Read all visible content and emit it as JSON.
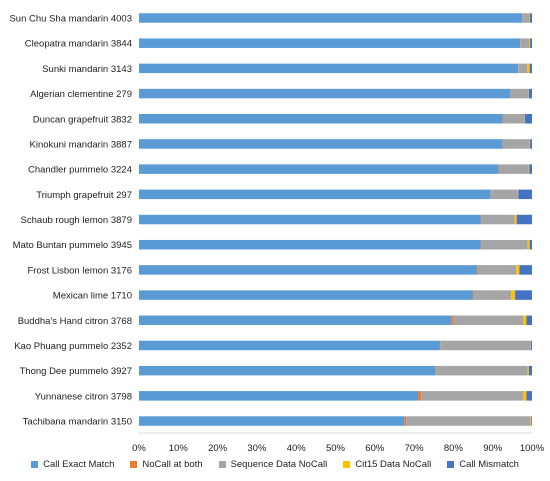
{
  "chart_data": {
    "type": "bar",
    "orientation": "horizontal",
    "stacked": "percent",
    "title": "",
    "xlabel": "",
    "ylabel": "",
    "xlim": [
      0,
      100
    ],
    "x_ticks": [
      "0%",
      "10%",
      "20%",
      "30%",
      "40%",
      "50%",
      "60%",
      "70%",
      "80%",
      "90%",
      "100%"
    ],
    "grid": false,
    "legend_position": "bottom",
    "categories": [
      "Sun Chu Sha mandarin 4003",
      "Cleopatra mandarin 3844",
      "Sunki mandarin 3143",
      "Algerian clementine 279",
      "Duncan grapefruit 3832",
      "Kinokuni mandarin 3887",
      "Chandler pummelo 3224",
      "Triumph grapefruit 297",
      "Schaub rough lemon 3879",
      "Mato Buntan pummelo 3945",
      "Frost Lisbon lemon 3176",
      "Mexican lime 1710",
      "Buddha's Hand citron 3768",
      "Kao Phuang pummelo 2352",
      "Thong Dee pummelo 3927",
      "Yunnanese citron 3798",
      "Tachibana mandarin 3150"
    ],
    "series": [
      {
        "name": "Call Exact Match",
        "color": "#5b9bd5",
        "values": [
          97.5,
          97.0,
          96.5,
          94.5,
          92.5,
          92.5,
          91.5,
          89.5,
          87.0,
          87.0,
          86.0,
          85.0,
          79.5,
          76.5,
          75.5,
          71.0,
          67.5
        ]
      },
      {
        "name": "NoCall at both",
        "color": "#ed7d31",
        "values": [
          0.1,
          0.1,
          0.1,
          0.1,
          0.1,
          0.1,
          0.1,
          0.1,
          0.1,
          0.1,
          0.2,
          0.2,
          0.5,
          0.1,
          0.1,
          0.8,
          0.5
        ]
      },
      {
        "name": "Sequence Data NoCall",
        "color": "#a5a5a5",
        "values": [
          1.8,
          2.2,
          2.2,
          4.5,
          5.5,
          6.8,
          7.5,
          6.8,
          8.5,
          11.8,
          9.8,
          9.5,
          17.8,
          22.9,
          23.3,
          26.0,
          31.5
        ]
      },
      {
        "name": "Cit15 Data NoCall",
        "color": "#ffc000",
        "values": [
          0.1,
          0.2,
          0.6,
          0.1,
          0.1,
          0.1,
          0.2,
          0.1,
          0.5,
          0.5,
          0.8,
          1.0,
          0.8,
          0.1,
          0.3,
          0.8,
          0.3
        ]
      },
      {
        "name": "Call Mismatch",
        "color": "#4472c4",
        "values": [
          0.5,
          0.5,
          0.6,
          0.8,
          1.8,
          0.5,
          0.7,
          3.5,
          3.9,
          0.6,
          3.2,
          4.3,
          1.4,
          0.3,
          0.8,
          1.4,
          0.2
        ]
      }
    ]
  }
}
